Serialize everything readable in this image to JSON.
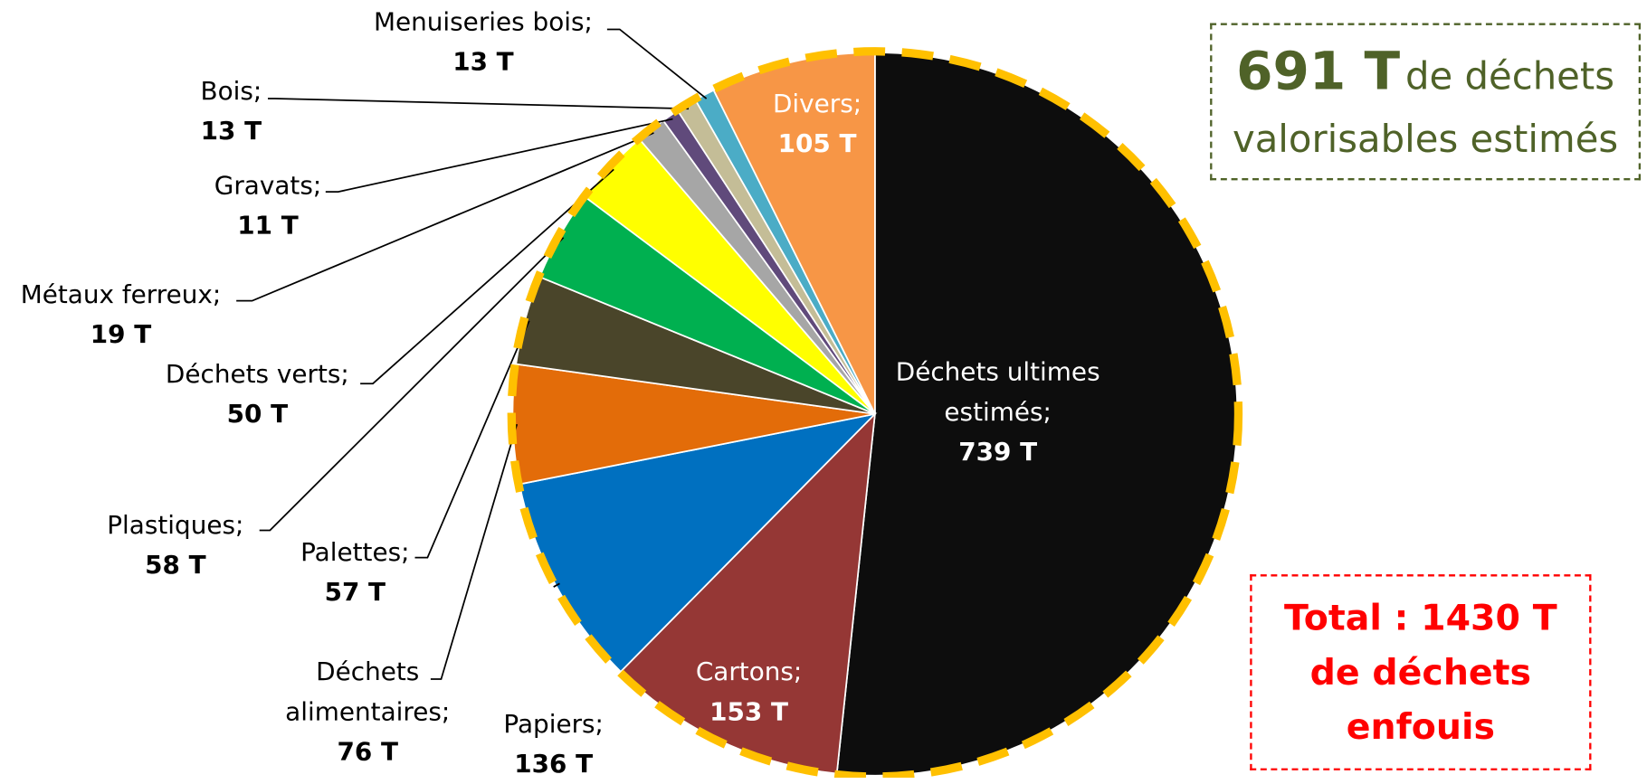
{
  "chart_data": {
    "type": "pie",
    "categories": [
      "Déchets ultimes estimés;",
      "Cartons;",
      "Papiers;",
      "Déchets alimentaires;",
      "Palettes;",
      "Plastiques;",
      "Déchets verts;",
      "Métaux ferreux;",
      "Gravats;",
      "Bois;",
      "Menuiseries bois;",
      "Divers;"
    ],
    "values": [
      739,
      153,
      136,
      76,
      57,
      58,
      50,
      19,
      11,
      13,
      13,
      105
    ],
    "value_labels": [
      "739 T",
      "153 T",
      "136 T",
      "76 T",
      "57 T",
      "58 T",
      "50 T",
      "19 T",
      "11 T",
      "13 T",
      "13 T",
      "105 T"
    ],
    "colors": [
      "#0D0D0D",
      "#953735",
      "#0070C0",
      "#E36C09",
      "#4A452A",
      "#00B050",
      "#FFFF00",
      "#A6A6A6",
      "#604A7B",
      "#C4BD97",
      "#4BACC6",
      "#F79646"
    ],
    "border_color": "#FFC000",
    "annotations": [
      "691 T",
      "de déchets valorisables estimés",
      "Total : 1430 T de déchets enfouis"
    ]
  }
}
